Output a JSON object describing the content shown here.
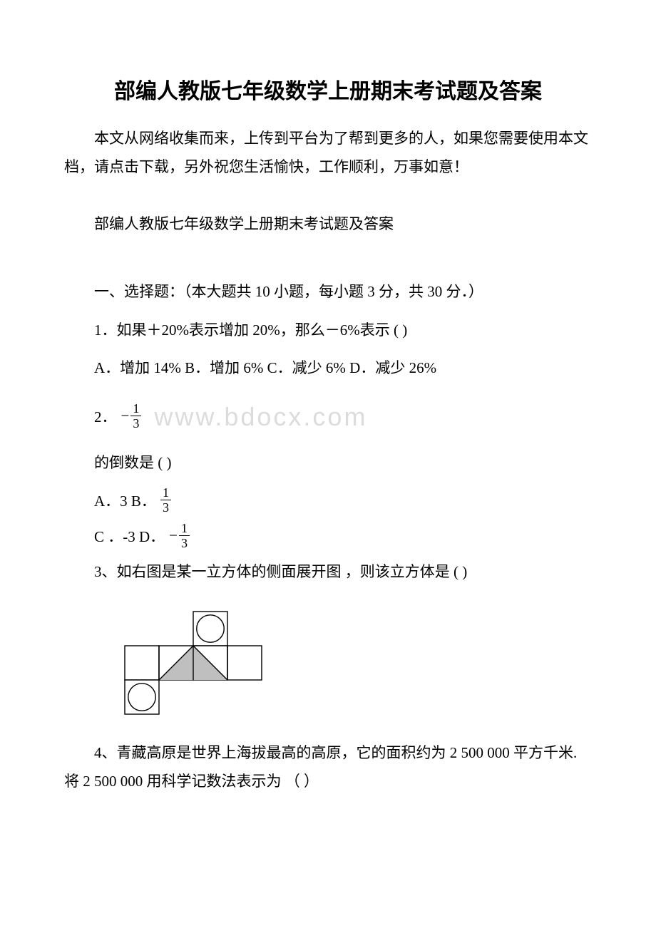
{
  "title": "部编人教版七年级数学上册期末考试题及答案",
  "intro": "本文从网络收集而来，上传到平台为了帮到更多的人，如果您需要使用本文档，请点击下载，另外祝您生活愉快，工作顺利，万事如意！",
  "subtitle": "部编人教版七年级数学上册期末考试题及答案",
  "section1": "一、选择题：（本大题共 10 小题，每小题 3 分，共 30 分．）",
  "q1": "1．如果＋20%表示增加 20%，那么－6%表示 (  )",
  "q1opts": "A．增加 14%   B．增加 6%   C．减少 6%    D．减少 26%",
  "q2label": "2．",
  "q2neg": "−",
  "q2num": "1",
  "q2den": "3",
  "watermark": "www.bdocx.com",
  "q2text": "的倒数是 (  )",
  "q2optA": "A．3  B．",
  "q2optB_num": "1",
  "q2optB_den": "3",
  "q2optC": " C ．-3  D．",
  "q2optD_neg": "−",
  "q2optD_num": "1",
  "q2optD_den": "3",
  "q3": "3、如右图是某一立方体的侧面展开图 ，则该立方体是 (  )",
  "q4": "4、青藏高原是世界上海拔最高的高原，它的面积约为 2 500 000 平方千米.将 2 500 000 用科学记数法表示为  （         ）",
  "figure": {
    "cell": 48,
    "stroke": "#000000",
    "fill_gray": "#bfbfbf",
    "fill_white": "#ffffff",
    "stroke_width": 1.4
  }
}
